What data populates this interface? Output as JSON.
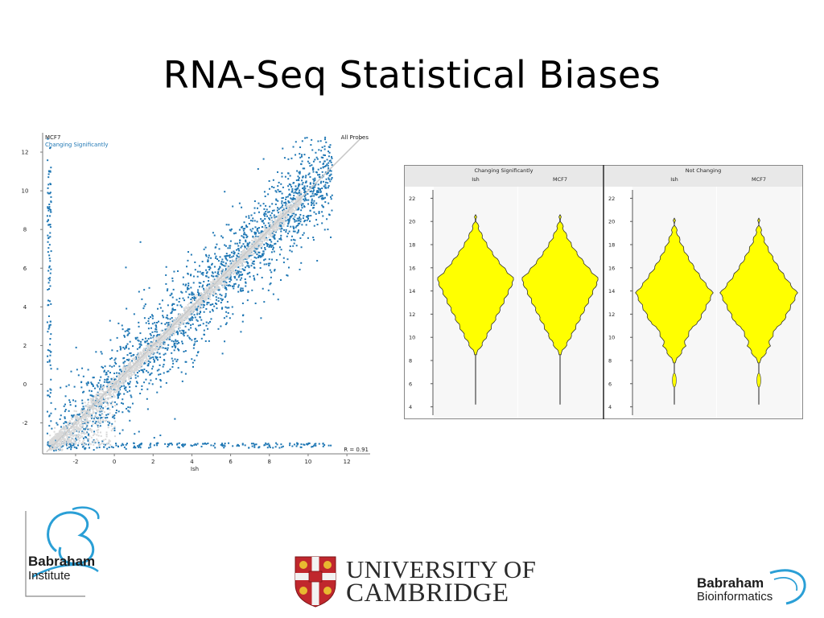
{
  "slide": {
    "title": "RNA-Seq Statistical Biases"
  },
  "chart_data": [
    {
      "type": "scatter",
      "title": "MCF7",
      "subtitle": "Changing Significantly",
      "top_right_label": "All Probes",
      "xlabel": "Ish",
      "ylabel": "MCF7",
      "xlim": [
        -3.7,
        13.2
      ],
      "ylim": [
        -3.6,
        13.0
      ],
      "xticks": [
        -2,
        0,
        2,
        4,
        6,
        8,
        10,
        12
      ],
      "yticks": [
        -2,
        0,
        2,
        4,
        6,
        8,
        10,
        12
      ],
      "correlation_label": "R = 0.91",
      "series": [
        {
          "name": "All Probes",
          "color": "#d9d9d9",
          "distribution": "tight around y=x, x from -3.5 to 12.5"
        },
        {
          "name": "Changing Significantly",
          "color": "#1f77b4",
          "distribution": "spread around y=x, x from -3.5 to 12.5"
        }
      ],
      "reference_line": {
        "slope": 1,
        "intercept": 0,
        "color": "#c8c8c8"
      },
      "grid": false
    },
    {
      "type": "violin",
      "panels": [
        {
          "title": "Changing Significantly",
          "groups": [
            {
              "name": "Ish",
              "min": 4.2,
              "max": 20.6,
              "peak": 15.0,
              "q_low": 8.5
            },
            {
              "name": "MCF7",
              "min": 4.2,
              "max": 20.6,
              "peak": 15.0,
              "q_low": 8.5
            }
          ]
        },
        {
          "title": "Not Changing",
          "groups": [
            {
              "name": "Ish",
              "min": 4.2,
              "max": 20.3,
              "peak": 13.8,
              "q_low": 7.8
            },
            {
              "name": "MCF7",
              "min": 4.2,
              "max": 20.3,
              "peak": 13.8,
              "q_low": 7.8
            }
          ]
        }
      ],
      "ylim": [
        3,
        23
      ],
      "yticks": [
        4,
        6,
        8,
        10,
        12,
        14,
        16,
        18,
        20,
        22
      ],
      "fill_color": "#ffff00",
      "outline_color": "#333333",
      "header_color": "#e8e8e8"
    }
  ],
  "logos": {
    "babraham_institute": {
      "line1": "Babraham",
      "line2": "Institute",
      "accent": "#2a9fd6"
    },
    "cambridge": {
      "line1": "UNIVERSITY OF",
      "line2": "CAMBRIDGE",
      "shield_red": "#c0272d",
      "shield_gold": "#e8b930"
    },
    "babraham_bioinformatics": {
      "line1": "Babraham",
      "line2": "Bioinformatics",
      "accent": "#2a9fd6"
    }
  }
}
